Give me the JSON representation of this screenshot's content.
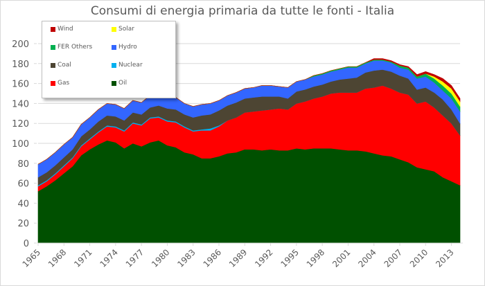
{
  "title": "Consumi di energia primaria da tutte le fonti - Italia",
  "chart_data": {
    "type": "area",
    "stacked": true,
    "title": "Consumi di energia primaria da tutte le fonti - Italia",
    "xlabel": "",
    "ylabel": "",
    "ylim": [
      0,
      200
    ],
    "yticks": [
      0,
      20,
      40,
      60,
      80,
      100,
      120,
      140,
      160,
      180,
      200
    ],
    "xtick_labels": [
      "1965",
      "1968",
      "1971",
      "1974",
      "1977",
      "1980",
      "1983",
      "1986",
      "1989",
      "1992",
      "1995",
      "1998",
      "2001",
      "2004",
      "2007",
      "2010",
      "2013"
    ],
    "grid": true,
    "legend_position": "upper-left inset",
    "x": [
      1965,
      1966,
      1967,
      1968,
      1969,
      1970,
      1971,
      1972,
      1973,
      1974,
      1975,
      1976,
      1977,
      1978,
      1979,
      1980,
      1981,
      1982,
      1983,
      1984,
      1985,
      1986,
      1987,
      1988,
      1989,
      1990,
      1991,
      1992,
      1993,
      1994,
      1995,
      1996,
      1997,
      1998,
      1999,
      2000,
      2001,
      2002,
      2003,
      2004,
      2005,
      2006,
      2007,
      2008,
      2009,
      2010,
      2011,
      2012,
      2013,
      2014
    ],
    "series": [
      {
        "name": "Oil",
        "color": "#005000",
        "values": [
          52,
          57,
          63,
          70,
          77,
          88,
          94,
          99,
          103,
          101,
          95,
          100,
          97,
          101,
          103,
          98,
          96,
          91,
          89,
          85,
          85,
          87,
          90,
          91,
          94,
          94,
          93,
          94,
          93,
          93,
          95,
          94,
          95,
          95,
          95,
          94,
          93,
          93,
          92,
          90,
          88,
          87,
          84,
          81,
          76,
          74,
          72,
          66,
          62,
          58
        ]
      },
      {
        "name": "Gas",
        "color": "#ff0000",
        "values": [
          5,
          5,
          6,
          7,
          8,
          9,
          10,
          12,
          14,
          15,
          17,
          20,
          21,
          24,
          23,
          24,
          25,
          25,
          23,
          28,
          28,
          30,
          33,
          35,
          37,
          38,
          40,
          40,
          42,
          41,
          45,
          48,
          50,
          52,
          55,
          57,
          58,
          58,
          63,
          66,
          70,
          68,
          67,
          68,
          64,
          68,
          64,
          62,
          58,
          50
        ]
      },
      {
        "name": "Nuclear",
        "color": "#00b0f0",
        "values": [
          1,
          1,
          1,
          1,
          1,
          1,
          1,
          1,
          1,
          1,
          1,
          1,
          1,
          1,
          1,
          1,
          1,
          1,
          1,
          1,
          2,
          1,
          0,
          0,
          0,
          0,
          0,
          0,
          0,
          0,
          0,
          0,
          0,
          0,
          0,
          0,
          0,
          0,
          0,
          0,
          0,
          0,
          0,
          0,
          0,
          0,
          0,
          0,
          0,
          0
        ]
      },
      {
        "name": "Coal",
        "color": "#4d4533",
        "values": [
          8,
          8,
          8,
          8,
          8,
          9,
          9,
          10,
          10,
          10,
          10,
          10,
          10,
          10,
          11,
          12,
          12,
          12,
          13,
          14,
          14,
          15,
          15,
          15,
          14,
          14,
          14,
          13,
          12,
          11,
          12,
          12,
          12,
          12,
          12,
          13,
          14,
          15,
          16,
          17,
          16,
          17,
          17,
          16,
          14,
          14,
          15,
          16,
          14,
          12
        ]
      },
      {
        "name": "Hydro",
        "color": "#3366ff",
        "values": [
          13,
          13,
          13,
          13,
          12,
          12,
          12,
          12,
          12,
          12,
          12,
          12,
          12,
          12,
          12,
          12,
          12,
          11,
          11,
          11,
          11,
          10,
          10,
          10,
          10,
          10,
          11,
          11,
          10,
          11,
          10,
          10,
          10,
          10,
          10,
          10,
          11,
          10,
          9,
          10,
          9,
          9,
          8,
          9,
          11,
          11,
          10,
          9,
          11,
          12
        ]
      },
      {
        "name": "FER Others",
        "color": "#00b050",
        "values": [
          0,
          0,
          0,
          0,
          0,
          0,
          0,
          0,
          0,
          0,
          0,
          0,
          0,
          0,
          0,
          0,
          0,
          0,
          0,
          0,
          0,
          0,
          0,
          0,
          0,
          0,
          0,
          0,
          0,
          0,
          0,
          0,
          1,
          1,
          1,
          1,
          1,
          1,
          1,
          1,
          1,
          1,
          2,
          2,
          2,
          3,
          4,
          5,
          5,
          5
        ]
      },
      {
        "name": "Solar",
        "color": "#ffff00",
        "values": [
          0,
          0,
          0,
          0,
          0,
          0,
          0,
          0,
          0,
          0,
          0,
          0,
          0,
          0,
          0,
          0,
          0,
          0,
          0,
          0,
          0,
          0,
          0,
          0,
          0,
          0,
          0,
          0,
          0,
          0,
          0,
          0,
          0,
          0,
          0,
          0,
          0,
          0,
          0,
          0,
          0,
          0,
          0,
          0,
          0,
          0,
          2,
          4,
          5,
          5
        ]
      },
      {
        "name": "Wind",
        "color": "#c00000",
        "values": [
          0,
          0,
          0,
          0,
          0,
          0,
          0,
          0,
          0,
          0,
          0,
          0,
          0,
          0,
          0,
          0,
          0,
          0,
          0,
          0,
          0,
          0,
          0,
          0,
          0,
          0,
          0,
          0,
          0,
          0,
          0,
          0,
          0,
          0,
          0,
          0,
          0,
          0,
          0,
          1,
          1,
          1,
          1,
          1,
          2,
          2,
          2,
          3,
          3,
          3
        ]
      }
    ]
  },
  "legend": {
    "items": [
      {
        "label": "Wind",
        "color": "#c00000"
      },
      {
        "label": "Solar",
        "color": "#ffff00"
      },
      {
        "label": "FER Others",
        "color": "#00b050"
      },
      {
        "label": "Hydro",
        "color": "#3366ff"
      },
      {
        "label": "Coal",
        "color": "#4d4533"
      },
      {
        "label": "Nuclear",
        "color": "#00b0f0"
      },
      {
        "label": "Gas",
        "color": "#ff0000"
      },
      {
        "label": "Oil",
        "color": "#005000"
      }
    ]
  }
}
